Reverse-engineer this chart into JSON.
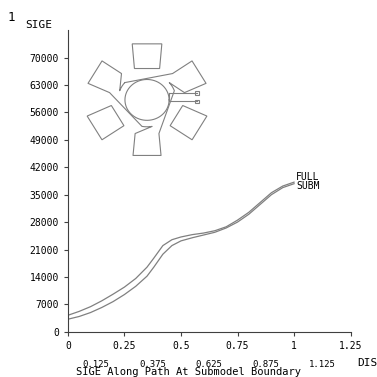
{
  "title": "1",
  "xlabel": "DIST",
  "ylabel": "SIGE",
  "subtitle": "SIGE Along Path At Submodel Boundary",
  "xlim": [
    0,
    1.25
  ],
  "ylim": [
    0,
    77000
  ],
  "xticks_major": [
    0,
    0.25,
    0.5,
    0.75,
    1.0,
    1.25
  ],
  "xticks_minor": [
    0.125,
    0.375,
    0.625,
    0.875,
    1.125
  ],
  "yticks": [
    0,
    7000,
    14000,
    21000,
    28000,
    35000,
    42000,
    49000,
    56000,
    63000,
    70000
  ],
  "line_color": "#808080",
  "background_color": "#ffffff",
  "full_label": "FULL",
  "subm_label": "SUBM",
  "line1_x": [
    0,
    0.05,
    0.1,
    0.15,
    0.2,
    0.25,
    0.3,
    0.35,
    0.38,
    0.42,
    0.46,
    0.5,
    0.55,
    0.6,
    0.65,
    0.7,
    0.75,
    0.8,
    0.85,
    0.9,
    0.95,
    1.0
  ],
  "line1_y": [
    4200,
    5200,
    6400,
    7900,
    9600,
    11400,
    13600,
    16500,
    18800,
    22000,
    23500,
    24200,
    24800,
    25200,
    25800,
    26800,
    28500,
    30500,
    33000,
    35500,
    37200,
    38200
  ],
  "line2_x": [
    0,
    0.05,
    0.1,
    0.15,
    0.2,
    0.25,
    0.3,
    0.35,
    0.38,
    0.42,
    0.46,
    0.5,
    0.55,
    0.6,
    0.65,
    0.7,
    0.75,
    0.8,
    0.85,
    0.9,
    0.95,
    1.0
  ],
  "line2_y": [
    3200,
    3900,
    4900,
    6200,
    7700,
    9500,
    11600,
    14200,
    16500,
    19800,
    22000,
    23200,
    24000,
    24700,
    25400,
    26500,
    28000,
    30000,
    32500,
    35000,
    36800,
    37800
  ],
  "font_family": "monospace",
  "turbine_color": "#808080",
  "turbine_lw": 0.8
}
